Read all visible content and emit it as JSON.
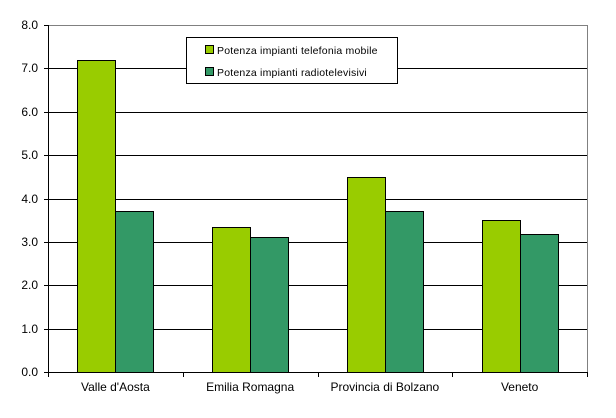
{
  "chart_data": {
    "type": "bar",
    "title": "",
    "xlabel": "",
    "ylabel": "",
    "categories": [
      "Valle d'Aosta",
      "Emilia Romagna",
      "Provincia di Bolzano",
      "Veneto"
    ],
    "series": [
      {
        "name": "Potenza impianti telefonia mobile",
        "color": "#99CC00",
        "values": [
          7.2,
          3.35,
          4.5,
          3.5
        ]
      },
      {
        "name": "Potenza impianti radiotelevisivi",
        "color": "#339966",
        "values": [
          3.72,
          3.12,
          3.72,
          3.18
        ]
      }
    ],
    "ylim": [
      0,
      8
    ],
    "yticks": [
      "0.0",
      "1.0",
      "2.0",
      "3.0",
      "4.0",
      "5.0",
      "6.0",
      "7.0",
      "8.0"
    ],
    "grid": true,
    "legend_position": "top-inside"
  },
  "legend": {
    "items": [
      {
        "label": "Potenza impianti telefonia mobile",
        "color": "#99CC00"
      },
      {
        "label": "Potenza impianti radiotelevisivi",
        "color": "#339966"
      }
    ]
  }
}
